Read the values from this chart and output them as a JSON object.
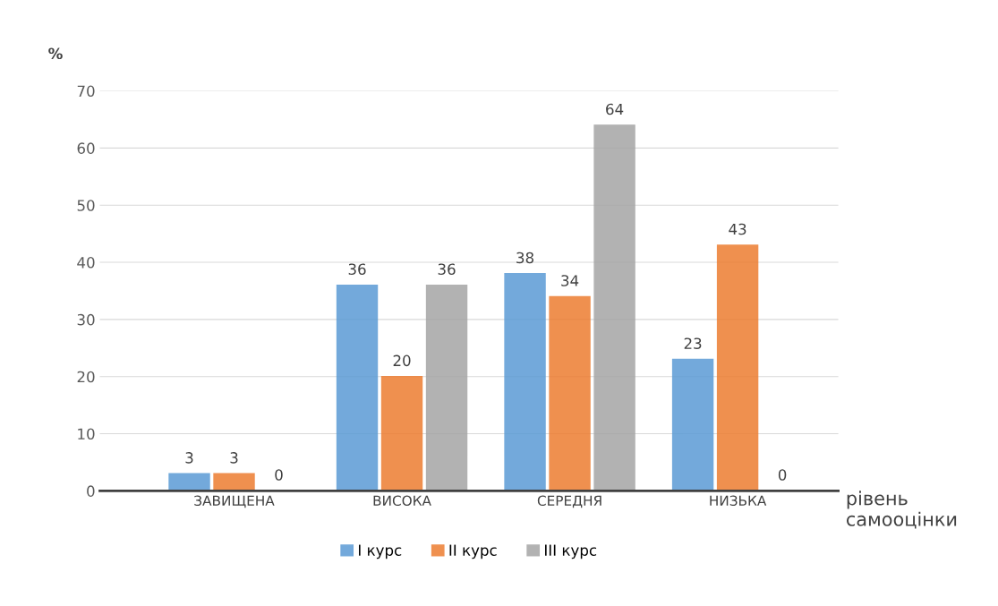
{
  "chart_data": {
    "type": "bar",
    "categories": [
      "ЗАВИЩЕНА",
      "ВИСОКА",
      "СЕРЕДНЯ",
      "НИЗЬКА"
    ],
    "series": [
      {
        "name": "I курс",
        "color": "#5b9bd5",
        "values": [
          3,
          36,
          38,
          23
        ]
      },
      {
        "name": "II курс",
        "color": "#ed7d31",
        "values": [
          3,
          20,
          34,
          43
        ]
      },
      {
        "name": "III курс",
        "color": "#a5a5a5",
        "values": [
          0,
          36,
          64,
          0
        ]
      }
    ],
    "xlabel": "рівень\nсамооцінки",
    "ylabel": "%",
    "ylim": [
      0,
      70
    ],
    "yticks": [
      0,
      10,
      20,
      30,
      40,
      50,
      60,
      70
    ],
    "grid": "y",
    "legend": "bottom",
    "data_labels": true
  }
}
